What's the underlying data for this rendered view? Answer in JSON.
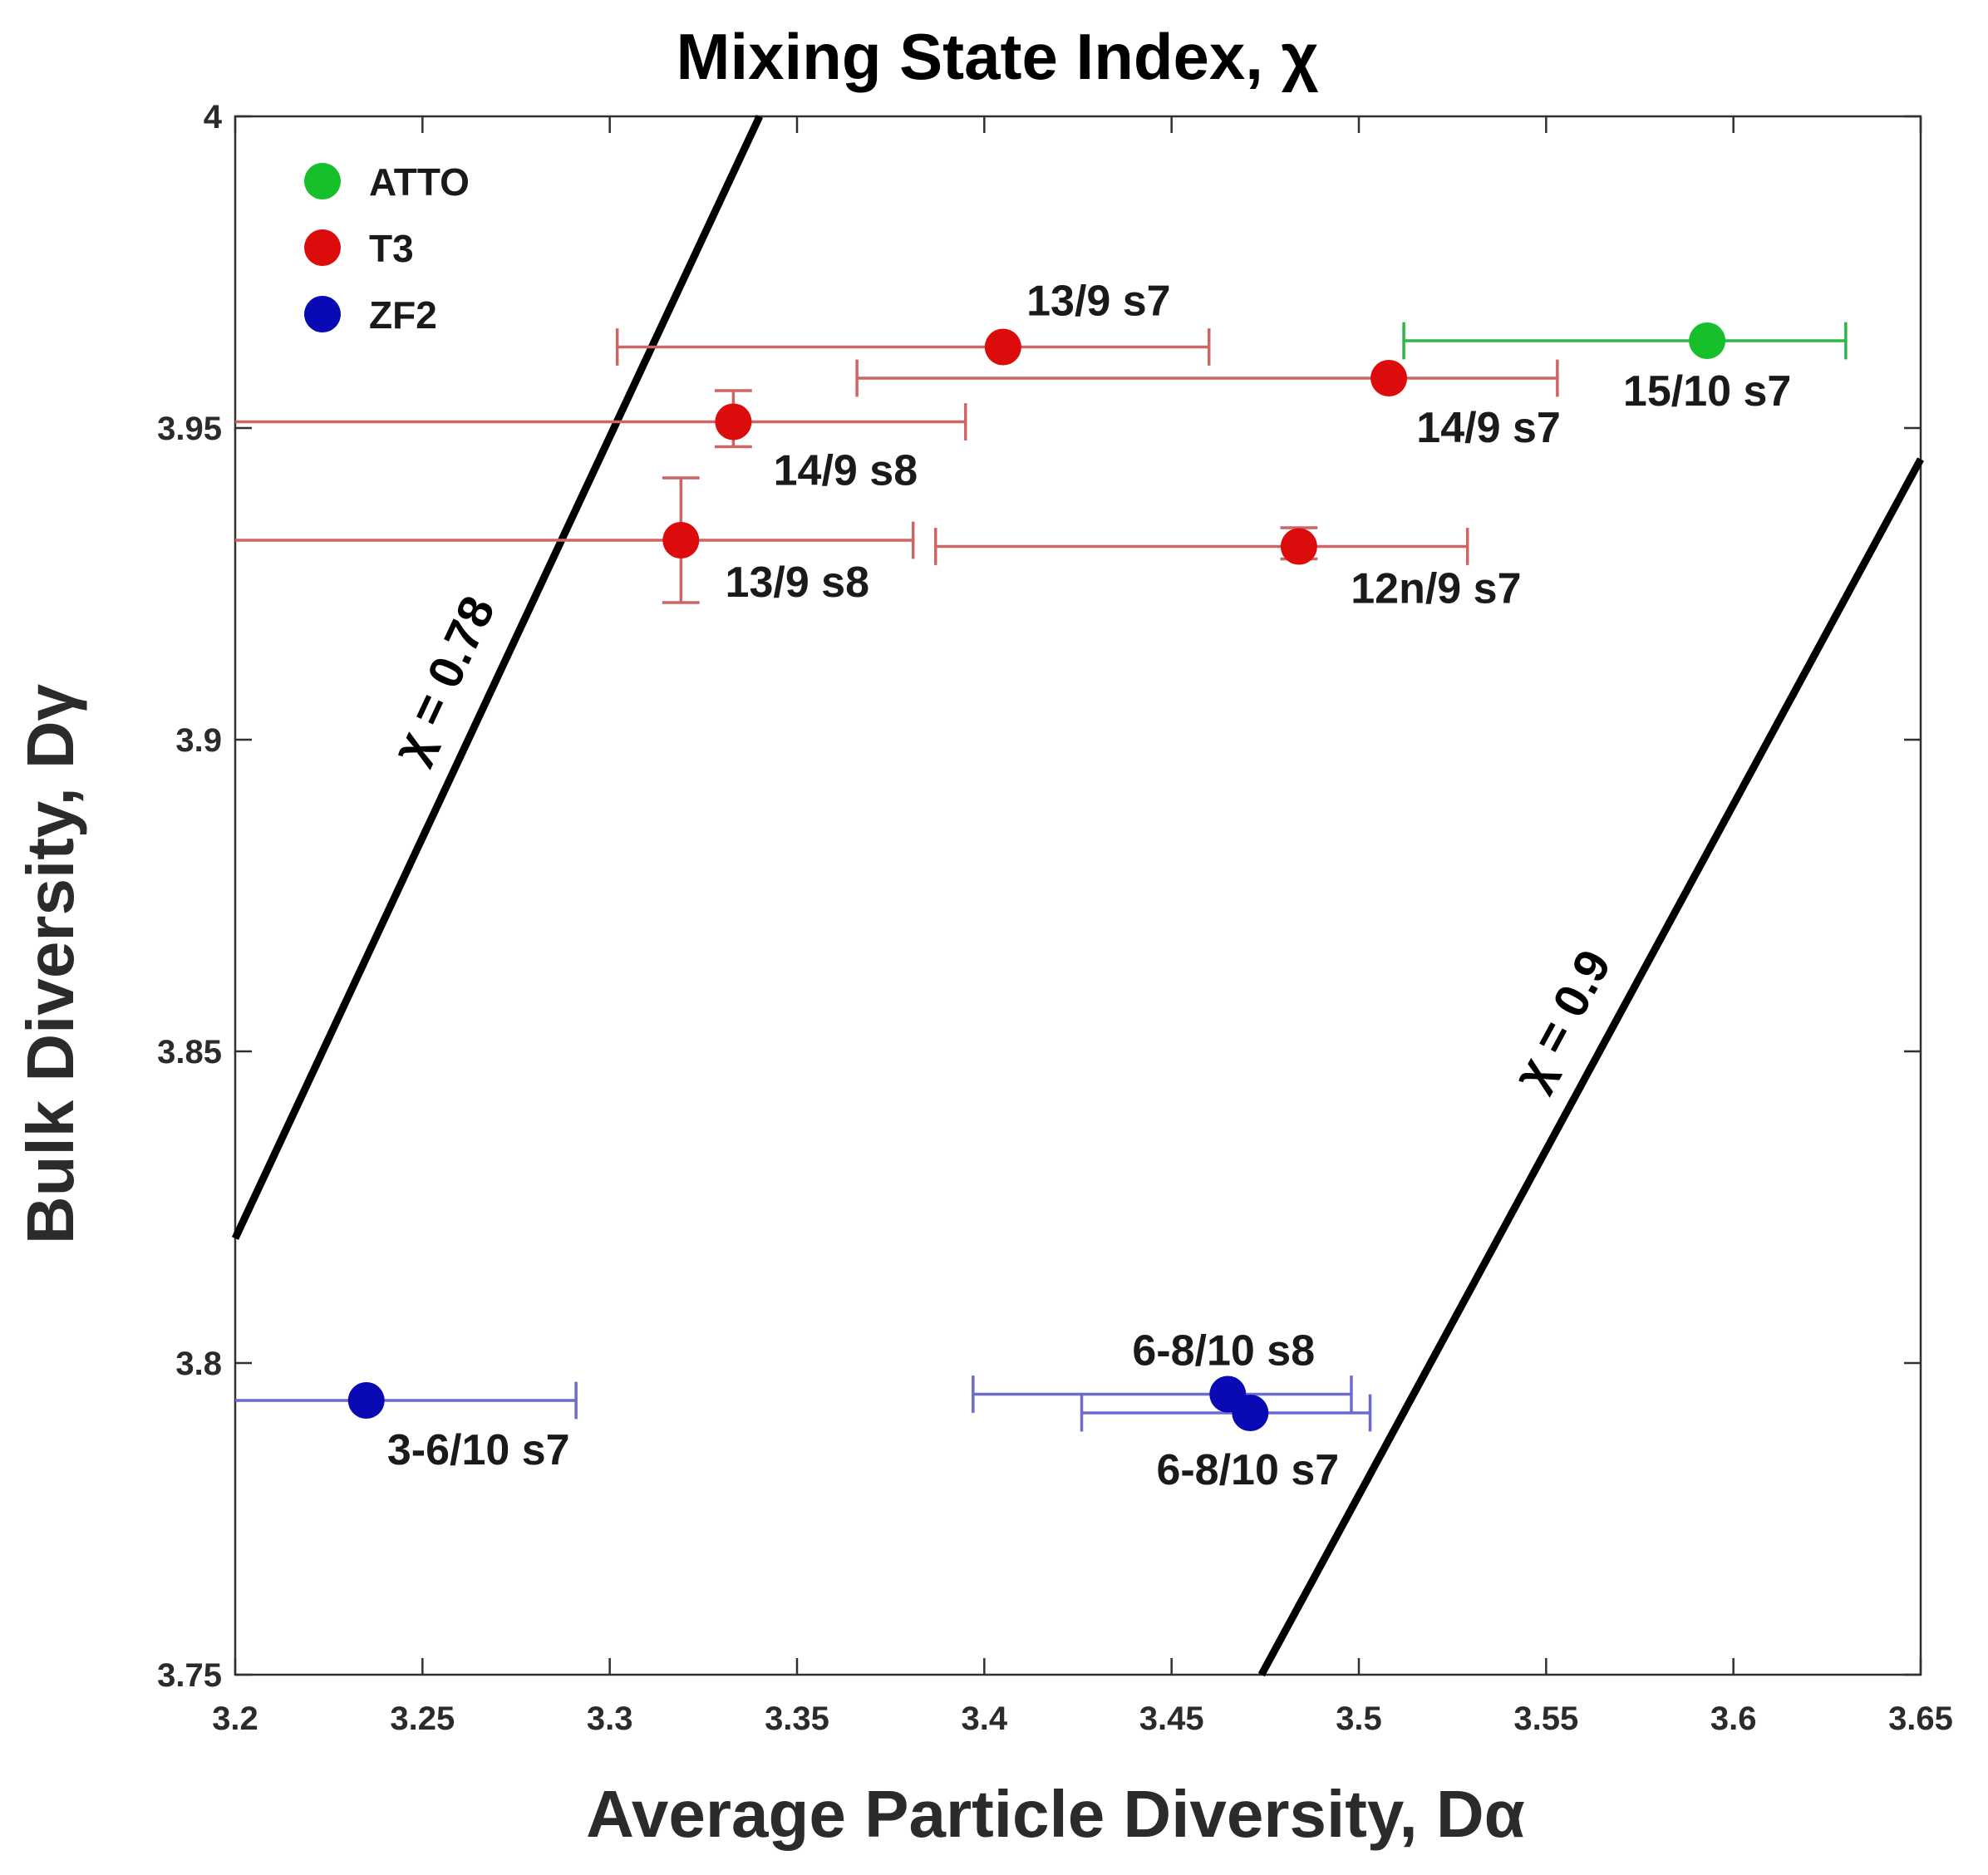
{
  "chart_data": {
    "type": "scatter",
    "title": "Mixing State Index, χ",
    "xlabel": "Average Particle Diversity, Dα",
    "ylabel": "Bulk Diversity, Dγ",
    "xlim": [
      3.2,
      3.65
    ],
    "ylim": [
      3.75,
      4.0
    ],
    "x_ticks": [
      "3.2",
      "3.25",
      "3.3",
      "3.35",
      "3.4",
      "3.45",
      "3.5",
      "3.55",
      "3.6",
      "3.65"
    ],
    "y_ticks": [
      "3.75",
      "3.8",
      "3.85",
      "3.9",
      "3.95",
      "4"
    ],
    "legend_position": "top-left",
    "grid": false,
    "series": [
      {
        "name": "ATTO",
        "color": "#17bf2a",
        "error_color": "#2fb548",
        "points": [
          {
            "label": "15/10 s7",
            "x": 3.593,
            "y": 3.964,
            "xerr": [
              3.512,
              3.63
            ],
            "yerr": null
          }
        ]
      },
      {
        "name": "T3",
        "color": "#dd0c0c",
        "error_color": "#cf6464",
        "points": [
          {
            "label": "13/9 s7",
            "x": 3.405,
            "y": 3.963,
            "xerr": [
              3.302,
              3.46
            ],
            "yerr": null
          },
          {
            "label": "14/9 s7",
            "x": 3.508,
            "y": 3.958,
            "xerr": [
              3.366,
              3.553
            ],
            "yerr": null
          },
          {
            "label": "14/9 s8",
            "x": 3.333,
            "y": 3.951,
            "xerr": [
              3.2,
              3.395
            ],
            "yerr": [
              3.947,
              3.956
            ]
          },
          {
            "label": "13/9 s8",
            "x": 3.319,
            "y": 3.932,
            "xerr": [
              3.2,
              3.381
            ],
            "yerr": [
              3.922,
              3.942
            ]
          },
          {
            "label": "12n/9 s7",
            "x": 3.484,
            "y": 3.931,
            "xerr": [
              3.387,
              3.529
            ],
            "yerr": [
              3.929,
              3.934
            ]
          }
        ]
      },
      {
        "name": "ZF2",
        "color": "#0a0ab4",
        "error_color": "#6a6ad0",
        "points": [
          {
            "label": "3-6/10 s7",
            "x": 3.235,
            "y": 3.794,
            "xerr": [
              3.2,
              3.291
            ],
            "yerr": null
          },
          {
            "label": "6-8/10 s8",
            "x": 3.465,
            "y": 3.795,
            "xerr": [
              3.397,
              3.498
            ],
            "yerr": null
          },
          {
            "label": "6-8/10 s7",
            "x": 3.471,
            "y": 3.792,
            "xerr": [
              3.426,
              3.503
            ],
            "yerr": null
          }
        ]
      }
    ],
    "reference_lines": [
      {
        "label": "χ = 0.78",
        "from": [
          3.2,
          3.82
        ],
        "to": [
          3.34,
          4.0
        ]
      },
      {
        "label": "χ = 0.9",
        "from": [
          3.474,
          3.75
        ],
        "to": [
          3.65,
          3.945
        ]
      }
    ]
  }
}
